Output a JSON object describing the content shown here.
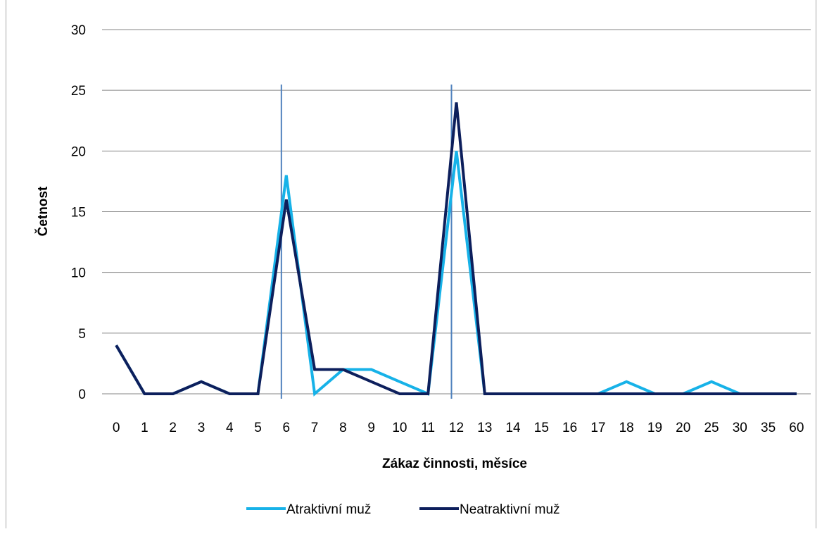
{
  "chart_data": {
    "type": "line",
    "title": "",
    "xlabel": "Zákaz činnosti, měsíce",
    "ylabel": "Četnost",
    "categories": [
      "0",
      "1",
      "2",
      "3",
      "4",
      "5",
      "6",
      "7",
      "8",
      "9",
      "10",
      "11",
      "12",
      "13",
      "14",
      "15",
      "16",
      "17",
      "18",
      "19",
      "20",
      "25",
      "30",
      "35",
      "60"
    ],
    "ylim": [
      0,
      30
    ],
    "yticks": [
      0,
      5,
      10,
      15,
      20,
      25,
      30
    ],
    "grid": true,
    "legend_position": "bottom",
    "reference_lines_x": [
      "6",
      "12"
    ],
    "series": [
      {
        "name": "Atraktivní muž",
        "color": "#17b2e8",
        "values": [
          4,
          0,
          0,
          1,
          0,
          0,
          18,
          0,
          2,
          2,
          1,
          0,
          20,
          0,
          0,
          0,
          0,
          0,
          1,
          0,
          0,
          1,
          0,
          0,
          0
        ]
      },
      {
        "name": "Neatraktivní muž",
        "color": "#0d1f5c",
        "values": [
          4,
          0,
          0,
          1,
          0,
          0,
          16,
          2,
          2,
          1,
          0,
          0,
          24,
          0,
          0,
          0,
          0,
          0,
          0,
          0,
          0,
          0,
          0,
          0,
          0
        ]
      }
    ],
    "colors": {
      "grid": "#868686",
      "reference_line": "#4f81bd"
    }
  }
}
